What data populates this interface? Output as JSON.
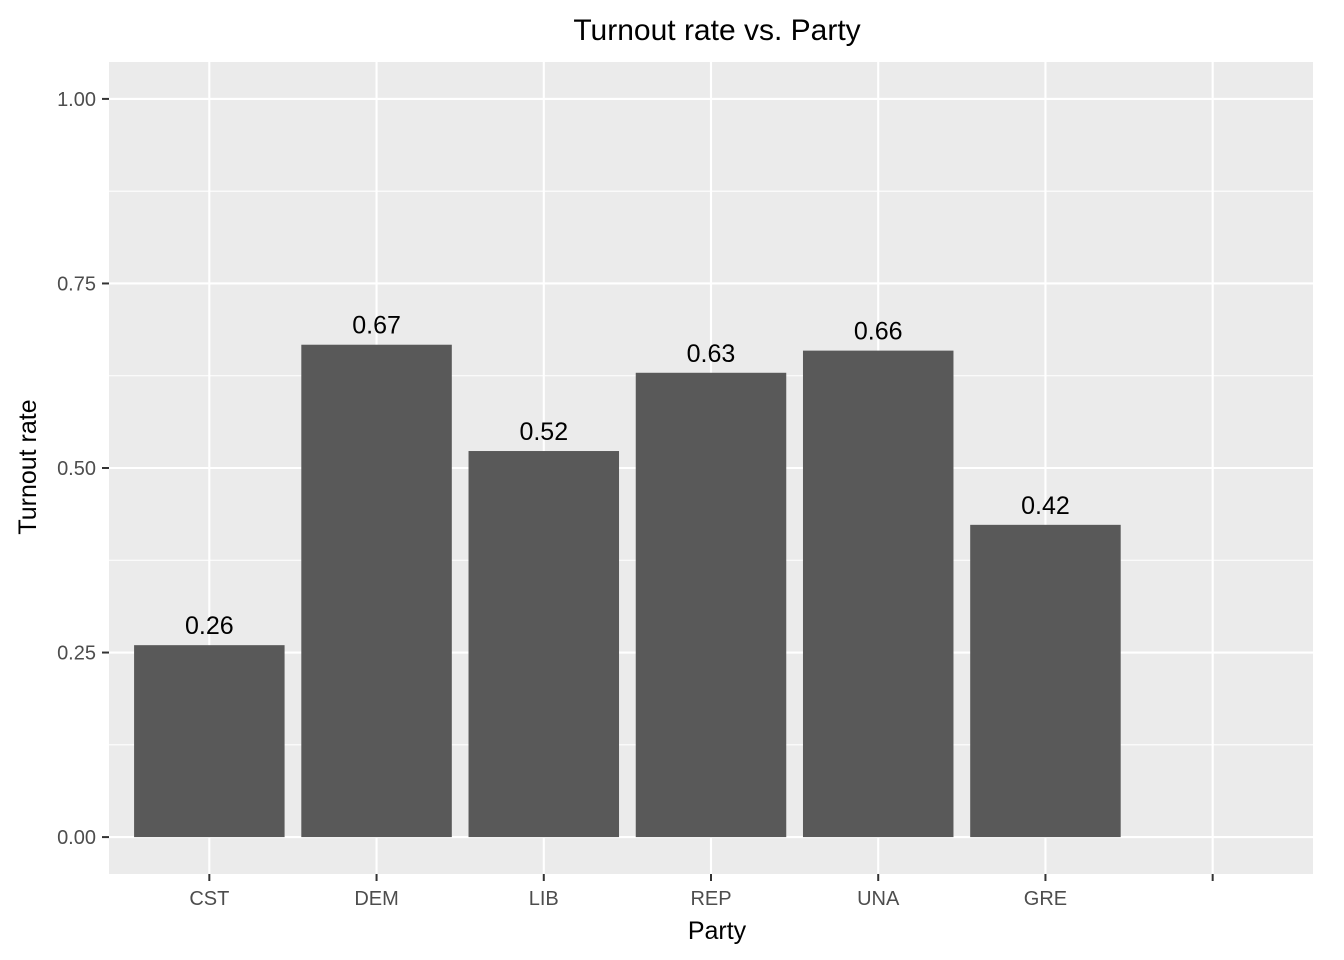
{
  "chart_data": {
    "type": "bar",
    "title": "Turnout rate vs. Party",
    "xlabel": "Party",
    "ylabel": "Turnout rate",
    "categories": [
      "CST",
      "DEM",
      "LIB",
      "REP",
      "UNA",
      "GRE",
      ""
    ],
    "values": [
      0.26,
      0.667,
      0.523,
      0.629,
      0.659,
      0.423,
      null
    ],
    "data_labels": [
      "0.26",
      "0.67",
      "0.52",
      "0.63",
      "0.66",
      "0.42",
      ""
    ],
    "ylim": [
      -0.05,
      1.05
    ],
    "yticks": [
      0,
      0.25,
      0.5,
      0.75,
      1.0
    ],
    "ytick_labels": [
      "0.00",
      "0.25",
      "0.50",
      "0.75",
      "1.00"
    ],
    "grid": true,
    "legend": "none",
    "colors": {
      "bar": "#595959",
      "panel": "#ebebeb",
      "grid": "#ffffff"
    }
  }
}
